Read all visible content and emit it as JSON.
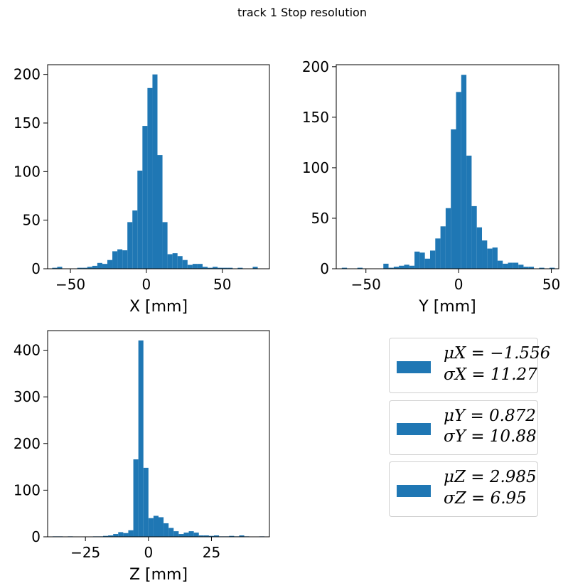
{
  "figure": {
    "title": "track 1 Stop resolution"
  },
  "colors": {
    "bar": "#1f77b4",
    "axis": "#000000",
    "legend_border": "#d0d0d0"
  },
  "chart_data": [
    {
      "type": "bar",
      "panel": "x",
      "xlabel": "X [mm]",
      "ylabel": "",
      "xlim": [
        -65,
        81
      ],
      "ylim": [
        0,
        210
      ],
      "xticks": [
        -50,
        0,
        50
      ],
      "yticks": [
        0,
        50,
        100,
        150,
        200
      ],
      "grid": false,
      "bin_width": 3.3,
      "bin_start": -62,
      "values": [
        1,
        2,
        0,
        0,
        0,
        1,
        1,
        2,
        3,
        6,
        5,
        9,
        18,
        20,
        19,
        48,
        60,
        101,
        147,
        186,
        200,
        117,
        48,
        15,
        16,
        13,
        9,
        4,
        5,
        5,
        2,
        1,
        2,
        1,
        1,
        1,
        0,
        1,
        0,
        0,
        2,
        0
      ]
    },
    {
      "type": "bar",
      "panel": "y",
      "xlabel": "Y [mm]",
      "ylabel": "",
      "xlim": [
        -66,
        54
      ],
      "ylim": [
        0,
        202
      ],
      "xticks": [
        -50,
        0,
        50
      ],
      "yticks": [
        0,
        50,
        100,
        150,
        200
      ],
      "grid": false,
      "bin_width": 2.8,
      "bin_start": -63,
      "values": [
        1,
        0,
        0,
        1,
        0,
        0,
        0,
        0,
        5,
        1,
        2,
        3,
        4,
        3,
        17,
        16,
        10,
        18,
        30,
        42,
        60,
        138,
        175,
        192,
        112,
        62,
        41,
        28,
        20,
        21,
        8,
        5,
        6,
        6,
        4,
        2,
        2,
        0,
        1,
        0,
        1
      ]
    },
    {
      "type": "bar",
      "panel": "z",
      "xlabel": "Z [mm]",
      "ylabel": "",
      "xlim": [
        -40,
        48
      ],
      "ylim": [
        0,
        442
      ],
      "xticks": [
        -25,
        0,
        25
      ],
      "yticks": [
        0,
        100,
        200,
        300,
        400
      ],
      "grid": false,
      "bin_width": 2.0,
      "bin_start": -38,
      "values": [
        1,
        1,
        0,
        1,
        0,
        0,
        0,
        0,
        1,
        1,
        2,
        3,
        6,
        10,
        8,
        14,
        166,
        421,
        148,
        40,
        45,
        42,
        29,
        19,
        12,
        6,
        9,
        12,
        9,
        3,
        3,
        2,
        3,
        1,
        1,
        2,
        1,
        3,
        1,
        0,
        0,
        1
      ]
    }
  ],
  "legend": [
    {
      "line1": "μX = −1.556",
      "line2": "σX = 11.27"
    },
    {
      "line1": "μY = 0.872",
      "line2": "σY = 10.88"
    },
    {
      "line1": "μZ = 2.985",
      "line2": "σZ = 6.95"
    }
  ]
}
